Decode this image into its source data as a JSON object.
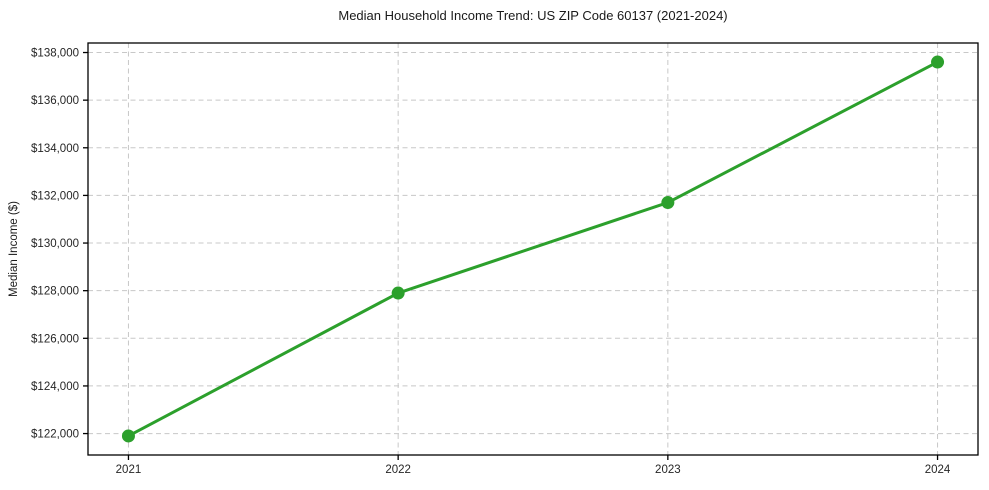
{
  "chart_data": {
    "type": "line",
    "title": "Median Household Income Trend: US ZIP Code 60137 (2021-2024)",
    "xlabel": "",
    "ylabel": "Median Income ($)",
    "categories": [
      "2021",
      "2022",
      "2023",
      "2024"
    ],
    "values": [
      121900,
      127900,
      131700,
      137600
    ],
    "ylim": [
      121100,
      138400
    ],
    "x_margin": 0.15,
    "y_ticks": {
      "values": [
        122000,
        124000,
        126000,
        128000,
        130000,
        132000,
        134000,
        136000,
        138000
      ],
      "labels": [
        "$122,000",
        "$124,000",
        "$126,000",
        "$128,000",
        "$130,000",
        "$132,000",
        "$134,000",
        "$136,000",
        "$138,000"
      ]
    },
    "grid": "dashed, both axes",
    "legend": "none",
    "marker": "circle"
  },
  "colors": {
    "line": "#2ca02c",
    "marker": "#2ca02c",
    "grid": "#c8c8c8",
    "spine": "#000000",
    "tick": "#000000",
    "text": "#262626",
    "background": "#ffffff"
  }
}
